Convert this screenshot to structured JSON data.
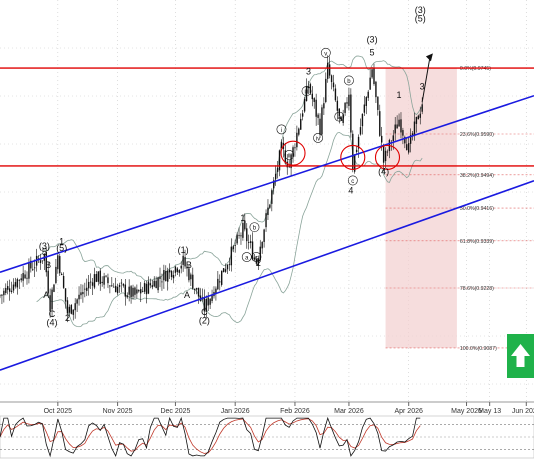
{
  "chart_data": {
    "type": "candlestick",
    "instrument_unit": "USD",
    "x_ticks": [
      "Oct 2025",
      "Nov 2025",
      "Dec 2025",
      "Jan 2026",
      "Feb 2026",
      "Mar 2026",
      "Apr 2026",
      "May 2026",
      "May 13",
      "Jun 2026"
    ],
    "fib_levels": [
      {
        "label": "0.0%(0.9745)",
        "value": 0.9745
      },
      {
        "label": "23.6%(0.9590)",
        "value": 0.959
      },
      {
        "label": "38.2%(0.9494)",
        "value": 0.9494
      },
      {
        "label": "50.0%(0.9416)",
        "value": 0.9416
      },
      {
        "label": "61.8%(0.9339)",
        "value": 0.9339
      },
      {
        "label": "78.6%(0.9228)",
        "value": 0.9228
      },
      {
        "label": "100.0%(0.9087)",
        "value": 0.9087
      }
    ],
    "horizontal_lines": [
      {
        "name": "resistance",
        "value": 0.9745,
        "color": "#e00000"
      },
      {
        "name": "support",
        "value": 0.9515,
        "color": "#e00000"
      }
    ],
    "wave_labels": [
      {
        "text": "(3)",
        "x": "2025-09-24",
        "y": 0.932
      },
      {
        "text": "5",
        "x": "2025-09-24",
        "y": 0.9305
      },
      {
        "text": "B",
        "x": "2025-09-26",
        "y": 0.9275
      },
      {
        "text": "A",
        "x": "2025-09-25",
        "y": 0.9205
      },
      {
        "text": "C",
        "x": "2025-09-28",
        "y": 0.916
      },
      {
        "text": "(4)",
        "x": "2025-09-28",
        "y": 0.914
      },
      {
        "text": "1",
        "x": "2025-10-03",
        "y": 0.933
      },
      {
        "text": "(5)",
        "x": "2025-10-03",
        "y": 0.9315
      },
      {
        "text": "2",
        "x": "2025-10-06",
        "y": 0.915
      },
      {
        "text": "(1)",
        "x": "2025-12-05",
        "y": 0.931
      },
      {
        "text": "B",
        "x": "2025-12-08",
        "y": 0.9275
      },
      {
        "text": "A",
        "x": "2025-12-07",
        "y": 0.9205
      },
      {
        "text": "C",
        "x": "2025-12-16",
        "y": 0.9165
      },
      {
        "text": "(2)",
        "x": "2025-12-16",
        "y": 0.9145
      },
      {
        "text": "1",
        "x": "2026-01-05",
        "y": 0.9385
      },
      {
        "text": "b",
        "x": "2026-01-11",
        "y": 0.9365
      },
      {
        "text": "a",
        "x": "2026-01-07",
        "y": 0.9295
      },
      {
        "text": "c",
        "x": "2026-01-12",
        "y": 0.9295
      },
      {
        "text": "2",
        "x": "2026-01-13",
        "y": 0.928
      },
      {
        "text": "i",
        "x": "2026-01-25",
        "y": 0.9595
      },
      {
        "text": "ii",
        "x": "2026-01-29",
        "y": 0.9535
      },
      {
        "text": "iii",
        "x": "2026-02-07",
        "y": 0.9685
      },
      {
        "text": "iv",
        "x": "2026-02-13",
        "y": 0.9575
      },
      {
        "text": "3",
        "x": "2026-02-08",
        "y": 0.973
      },
      {
        "text": "v",
        "x": "2026-02-17",
        "y": 0.9775
      },
      {
        "text": "a",
        "x": "2026-02-24",
        "y": 0.9625
      },
      {
        "text": "b",
        "x": "2026-02-29",
        "y": 0.971
      },
      {
        "text": "c",
        "x": "2026-03-03",
        "y": 0.9475
      },
      {
        "text": "4",
        "x": "2026-03-02",
        "y": 0.945
      },
      {
        "text": "(3)",
        "x": "2026-03-13",
        "y": 0.9805
      },
      {
        "text": "5",
        "x": "2026-03-13",
        "y": 0.9775
      },
      {
        "text": "(4)",
        "x": "2026-03-19",
        "y": 0.9495
      },
      {
        "text": "1",
        "x": "2026-03-27",
        "y": 0.9675
      },
      {
        "text": "3",
        "x": "2026-04-08",
        "y": 0.9695
      },
      {
        "text": "(3)",
        "x": "2026-04-07",
        "y": 0.9875
      },
      {
        "text": "(5)",
        "x": "2026-04-07",
        "y": 0.9855
      }
    ],
    "channel_lines": [
      {
        "name": "upper",
        "color": "#1a1ae0",
        "points": [
          {
            "x": "2025-09-01",
            "y": 0.9265
          },
          {
            "x": "2026-06-05",
            "y": 0.968
          }
        ]
      },
      {
        "name": "lower",
        "color": "#1a1ae0",
        "points": [
          {
            "x": "2025-09-01",
            "y": 0.9035
          },
          {
            "x": "2026-06-05",
            "y": 0.948
          }
        ]
      }
    ],
    "oscillator_guides": [
      {
        "value": 80,
        "color": "#555555"
      },
      {
        "value": 50,
        "color": "#999999"
      },
      {
        "value": 20,
        "color": "#555555"
      }
    ],
    "y_range": [
      0.896,
      0.9905
    ],
    "x_range": [
      "2025-09-01",
      "2026-06-05"
    ],
    "grid": true,
    "buy_signal": {
      "label": "up-arrow-icon",
      "color": "#1fb24a"
    }
  },
  "colors": {
    "candle": "#111111",
    "bollinger": "#8aa49a",
    "fib_zone": "#f3d1d1",
    "fib_line": "#e06060",
    "grid": "#c8c8c8",
    "stoch_k": "#111111",
    "stoch_d": "#c0392b",
    "forecast_arrow": "#111111",
    "ellipse": "#e00000"
  }
}
